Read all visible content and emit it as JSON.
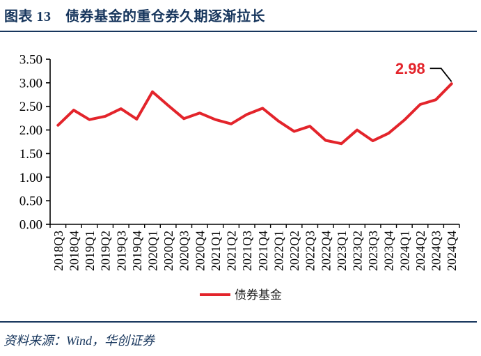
{
  "header": {
    "title": "图表 13　债券基金的重仓券久期逐渐拉长"
  },
  "colors": {
    "navy": "#17365d",
    "red": "#e3242b",
    "axis": "#000000",
    "callout": "#000000"
  },
  "chart_data": {
    "type": "line",
    "title": "图表 13 债券基金的重仓券久期逐渐拉长",
    "xlabel": "",
    "ylabel": "",
    "ylim": [
      0,
      3.5
    ],
    "grid": false,
    "legend_position": "bottom",
    "categories": [
      "2018Q3",
      "2018Q4",
      "2019Q1",
      "2019Q2",
      "2019Q3",
      "2019Q4",
      "2020Q1",
      "2020Q2",
      "2020Q3",
      "2020Q4",
      "2021Q1",
      "2021Q2",
      "2021Q3",
      "2021Q4",
      "2022Q1",
      "2022Q2",
      "2022Q3",
      "2022Q4",
      "2023Q1",
      "2023Q2",
      "2023Q3",
      "2023Q4",
      "2024Q1",
      "2024Q2",
      "2024Q3",
      "2024Q4"
    ],
    "series": [
      {
        "name": "债券基金",
        "color": "#e3242b",
        "values": [
          2.1,
          2.42,
          2.22,
          2.29,
          2.45,
          2.23,
          2.81,
          2.52,
          2.24,
          2.36,
          2.22,
          2.13,
          2.33,
          2.46,
          2.19,
          1.97,
          2.08,
          1.78,
          1.71,
          2.0,
          1.77,
          1.93,
          2.21,
          2.54,
          2.64,
          2.98
        ]
      }
    ],
    "yticks": [
      {
        "value": 0.0,
        "label": "0.00"
      },
      {
        "value": 0.5,
        "label": "0.50"
      },
      {
        "value": 1.0,
        "label": "1.00"
      },
      {
        "value": 1.5,
        "label": "1.50"
      },
      {
        "value": 2.0,
        "label": "2.00"
      },
      {
        "value": 2.5,
        "label": "2.50"
      },
      {
        "value": 3.0,
        "label": "3.00"
      },
      {
        "value": 3.5,
        "label": "3.50"
      }
    ],
    "annotation": {
      "label": "2.98",
      "category": "2024Q4",
      "value": 2.98
    }
  },
  "legend": {
    "series_label": "债券基金"
  },
  "footer": {
    "source": "资料来源：Wind，华创证券"
  }
}
